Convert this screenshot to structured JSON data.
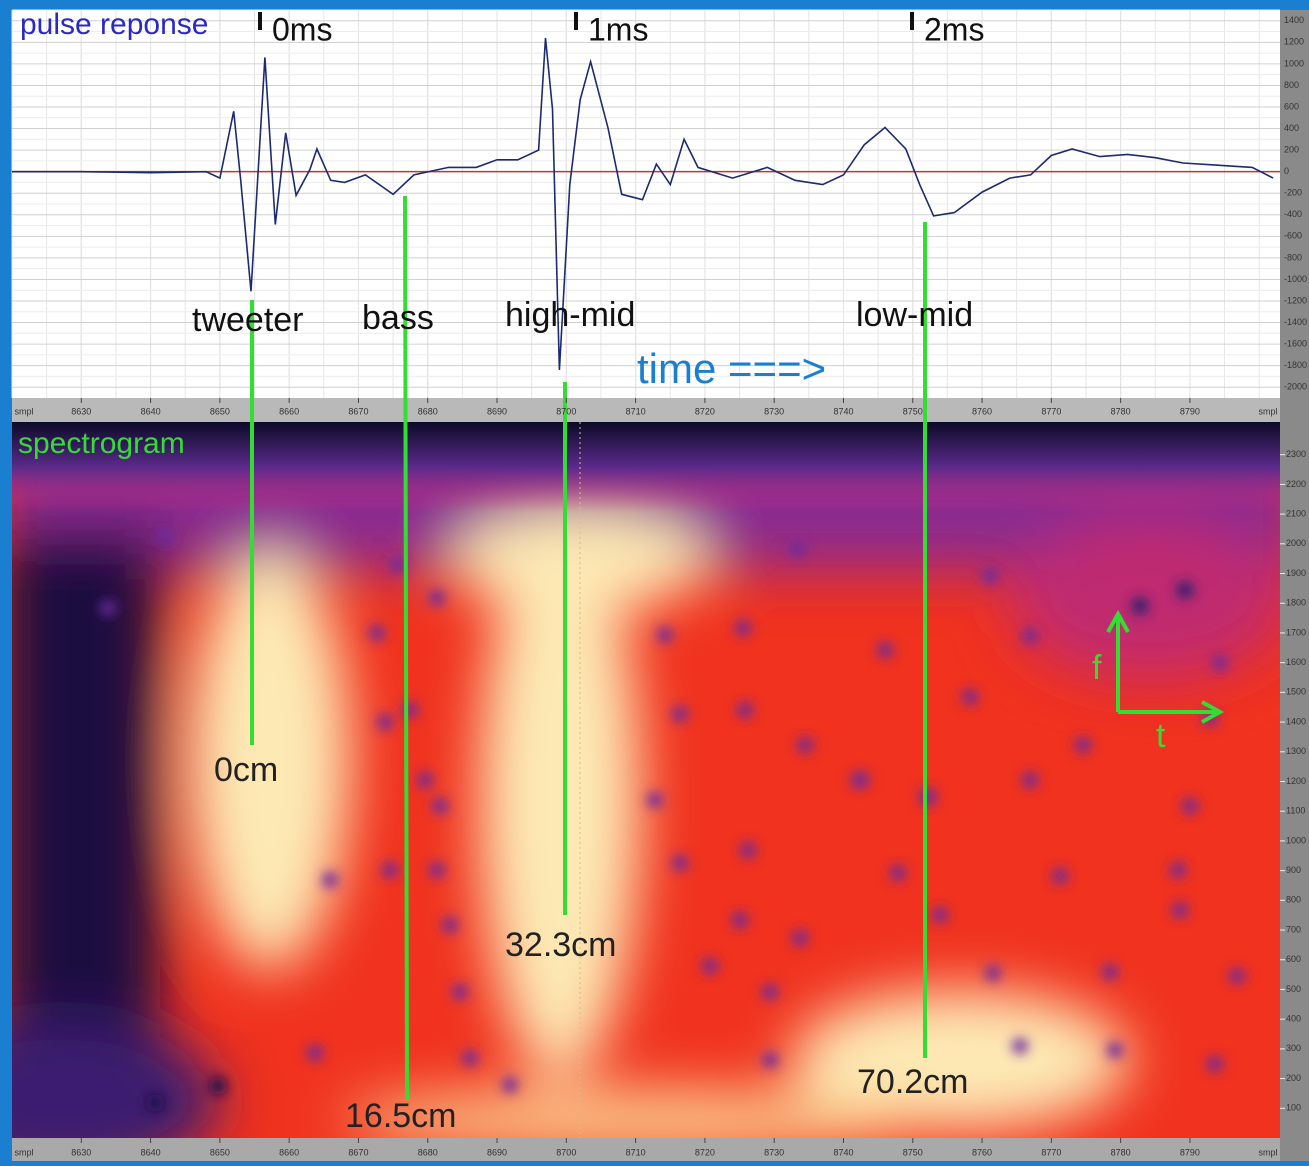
{
  "chart_data": {
    "type": "line",
    "title": "pulse reponse",
    "x_unit": "smpl",
    "color": "#1c2a6e",
    "zero_line_color": "#c0392b",
    "grid": true,
    "xlim": [
      8620,
      8803
    ],
    "ylim": [
      -2100,
      1500
    ],
    "xticks": [
      8630,
      8640,
      8650,
      8660,
      8670,
      8680,
      8690,
      8700,
      8710,
      8720,
      8730,
      8740,
      8750,
      8760,
      8770,
      8780,
      8790
    ],
    "yticks": [
      1400,
      1200,
      1000,
      800,
      600,
      400,
      200,
      0,
      -200,
      -400,
      -600,
      -800,
      -1000,
      -1200,
      -1400,
      -1600,
      -1800,
      -2000
    ],
    "x": [
      8620,
      8630,
      8640,
      8648,
      8650,
      8652,
      8653,
      8654.5,
      8656.5,
      8658,
      8659.5,
      8661,
      8663,
      8664,
      8666,
      8668,
      8671,
      8675,
      8678,
      8683,
      8687,
      8690,
      8693,
      8696,
      8697,
      8698,
      8699,
      8700.5,
      8702,
      8703.5,
      8706,
      8708,
      8711,
      8713,
      8715,
      8717,
      8719,
      8724,
      8729,
      8733,
      8737,
      8740,
      8743,
      8746,
      8749,
      8751,
      8753,
      8756,
      8760,
      8764,
      8767,
      8770,
      8773,
      8777,
      8781,
      8785,
      8789,
      8794,
      8799,
      8802
    ],
    "values": [
      0,
      0,
      -10,
      0,
      -60,
      560,
      -80,
      -1110,
      1060,
      -490,
      360,
      -220,
      20,
      210,
      -80,
      -100,
      -30,
      -210,
      -30,
      40,
      40,
      110,
      110,
      200,
      1240,
      580,
      -1840,
      -120,
      670,
      1020,
      410,
      -210,
      -260,
      70,
      -120,
      300,
      40,
      -60,
      40,
      -80,
      -120,
      -30,
      250,
      410,
      210,
      -120,
      -410,
      -380,
      -190,
      -60,
      -30,
      150,
      210,
      140,
      160,
      130,
      80,
      60,
      40,
      -60
    ],
    "time_marks": [
      "0ms",
      "1ms",
      "2ms"
    ],
    "drivers": [
      "tweeter",
      "bass",
      "high-mid",
      "low-mid"
    ],
    "time_label": "time  ===>"
  },
  "spectrogram": {
    "title": "spectrogram",
    "ylim": [
      0,
      2410
    ],
    "yticks": [
      2300,
      2200,
      2100,
      2000,
      1900,
      1800,
      1700,
      1600,
      1500,
      1400,
      1300,
      1200,
      1100,
      1000,
      900,
      800,
      700,
      600,
      500,
      400,
      300,
      200,
      100
    ],
    "distances": [
      "0cm",
      "16.5cm",
      "32.3cm",
      "70.2cm"
    ],
    "axis_f": "f",
    "axis_t": "t"
  }
}
